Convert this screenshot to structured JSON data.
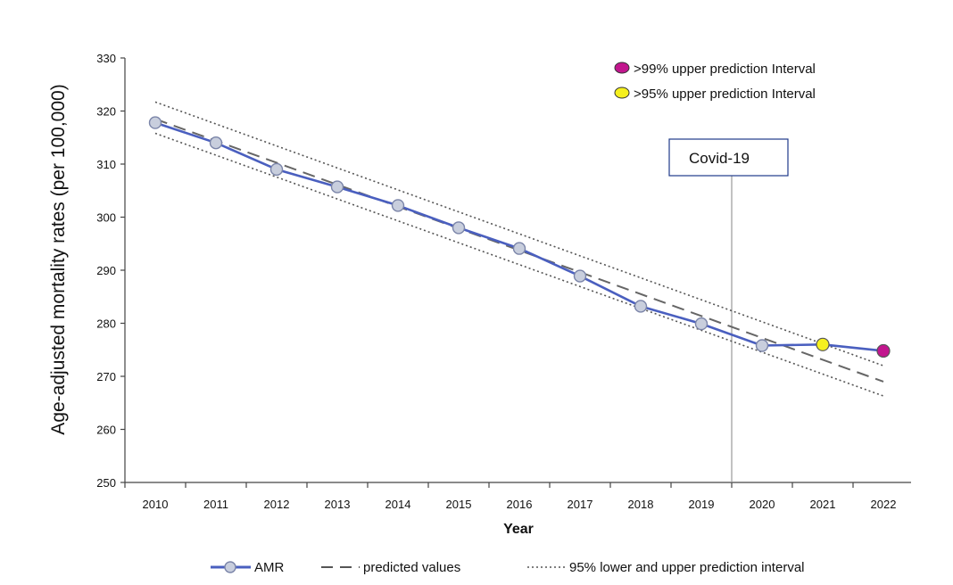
{
  "chart_data": {
    "type": "line",
    "title": "",
    "xlabel": "Year",
    "ylabel": "Age-adjusted mortality rates (per 100,000)",
    "x": [
      2010,
      2011,
      2012,
      2013,
      2014,
      2015,
      2016,
      2017,
      2018,
      2019,
      2020,
      2021,
      2022
    ],
    "x_tick_labels": [
      "2010",
      "2011",
      "2012",
      "2013",
      "2014",
      "2015",
      "2016",
      "2017",
      "2018",
      "2019",
      "2020",
      "2021",
      "2022"
    ],
    "ylim": [
      250,
      330
    ],
    "y_ticks": [
      250,
      260,
      270,
      280,
      290,
      300,
      310,
      320,
      330
    ],
    "y_tick_labels": [
      "250",
      "260",
      "270",
      "280",
      "290",
      "300",
      "310",
      "320",
      "330"
    ],
    "series": [
      {
        "name": "AMR",
        "style": "solid-markers",
        "color": "#4a5fbf",
        "marker_fill": "#c8cedd",
        "values": [
          317.8,
          314.0,
          309.0,
          305.7,
          302.2,
          298.0,
          294.1,
          288.9,
          283.2,
          279.9,
          275.8,
          276.0,
          274.8
        ]
      },
      {
        "name": "predicted values",
        "style": "dashed",
        "color": "#666666",
        "x": [
          2010,
          2022
        ],
        "values": [
          318.5,
          269.0
        ]
      },
      {
        "name": "95% upper prediction interval",
        "style": "dotted",
        "color": "#555555",
        "x": [
          2010,
          2022
        ],
        "values": [
          321.7,
          272.0
        ]
      },
      {
        "name": "95% lower prediction interval",
        "style": "dotted",
        "color": "#555555",
        "x": [
          2010,
          2022
        ],
        "values": [
          315.8,
          266.3
        ]
      }
    ],
    "highlighted_points": [
      {
        "x": 2021,
        "value": 276.0,
        "color": "#f5f01e",
        "category": ">95% upper prediction Interval"
      },
      {
        "x": 2022,
        "value": 274.8,
        "color": "#c2168e",
        "category": ">99% upper prediction Interval"
      }
    ],
    "annotation": {
      "label": "Covid-19",
      "x": 2019.5
    },
    "inset_legend": [
      {
        "label": ">99% upper prediction Interval",
        "color": "#c2168e"
      },
      {
        "label": ">95% upper prediction Interval",
        "color": "#f5f01e"
      }
    ],
    "bottom_legend": [
      {
        "label": "AMR",
        "style": "solid-markers"
      },
      {
        "label": "predicted values",
        "style": "dashed"
      },
      {
        "label": "95% lower and upper prediction interval",
        "style": "dotted"
      }
    ],
    "grid": false,
    "legend_position": "bottom"
  }
}
